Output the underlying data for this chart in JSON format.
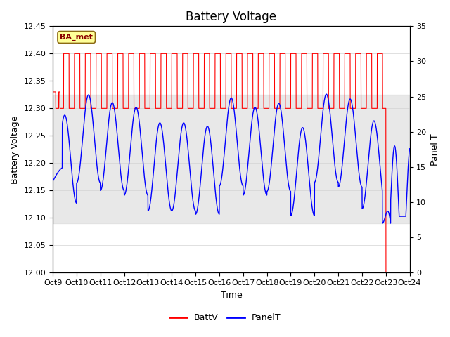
{
  "title": "Battery Voltage",
  "ylabel_left": "Battery Voltage",
  "ylabel_right": "Panel T",
  "xlabel": "Time",
  "ylim_left": [
    12.0,
    12.45
  ],
  "ylim_right": [
    0,
    35
  ],
  "x_tick_labels": [
    "Oct 9",
    "Oct 10",
    "Oct 11",
    "Oct 12",
    "Oct 13",
    "Oct 14",
    "Oct 15",
    "Oct 16",
    "Oct 17",
    "Oct 18",
    "Oct 19",
    "Oct 20",
    "Oct 21",
    "Oct 22",
    "Oct 23",
    "Oct 24"
  ],
  "x_tick_positions": [
    0,
    1,
    2,
    3,
    4,
    5,
    6,
    7,
    8,
    9,
    10,
    11,
    12,
    13,
    14,
    15
  ],
  "xlim": [
    0,
    15
  ],
  "battv_color": "#FF0000",
  "panelt_color": "#0000FF",
  "shading_color": "#D3D3D3",
  "shading_alpha": 0.5,
  "shading_ymin": 12.09,
  "shading_ymax": 12.325,
  "legend_labels": [
    "BattV",
    "PanelT"
  ],
  "station_label": "BA_met",
  "station_box_facecolor": "#FFFF99",
  "station_box_edgecolor": "#8B6914",
  "title_fontsize": 12,
  "label_fontsize": 9,
  "tick_fontsize": 8
}
